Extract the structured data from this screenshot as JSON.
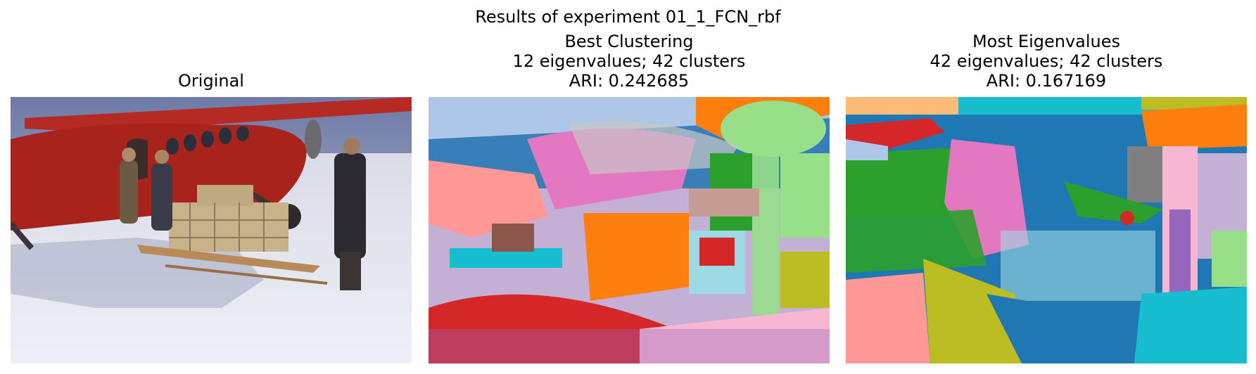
{
  "figure": {
    "suptitle": "Results of experiment 01_1_FCN_rbf"
  },
  "panels": [
    {
      "title_lines": [
        "Original"
      ],
      "kind": "photo",
      "content": "photograph: red airplane on snow, people loading crates onto a sled"
    },
    {
      "title_lines": [
        "Best Clustering",
        "12 eigenvalues; 42 clusters",
        "ARI: 0.242685"
      ],
      "kind": "segmentation",
      "eigenvalues": 12,
      "clusters": 42,
      "ari": 0.242685
    },
    {
      "title_lines": [
        "Most Eigenvalues",
        "42 eigenvalues; 42 clusters",
        "ARI: 0.167169"
      ],
      "kind": "segmentation",
      "eigenvalues": 42,
      "clusters": 42,
      "ari": 0.167169
    }
  ],
  "palette": {
    "blue": "#1f77b4",
    "orange": "#ff7f0e",
    "green": "#2ca02c",
    "red": "#d62728",
    "purple": "#9467bd",
    "brown": "#8c564b",
    "pink": "#e377c2",
    "gray": "#7f7f7f",
    "olive": "#bcbd22",
    "cyan": "#17becf",
    "light_blue": "#aec7e8",
    "light_orange": "#ffbb78",
    "light_green": "#98df8a",
    "light_red": "#ff9896",
    "light_purple": "#c5b0d5",
    "light_pink": "#f7b6d2",
    "light_gray": "#c7c7c7",
    "light_cyan": "#9edae5",
    "airplane_red": "#b3211c",
    "snow": "#e6e8f0",
    "sky": "#8a93b8"
  }
}
